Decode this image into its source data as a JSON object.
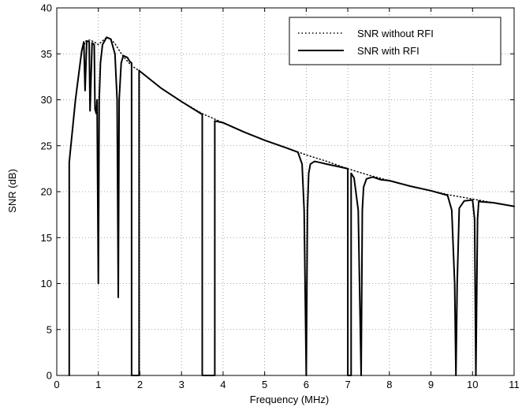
{
  "chart_data": {
    "type": "line",
    "title": "",
    "xlabel": "Frequency (MHz)",
    "ylabel": "SNR (dB)",
    "xlim": [
      0,
      11
    ],
    "ylim": [
      0,
      40
    ],
    "xticks": [
      "0",
      "1",
      "2",
      "3",
      "4",
      "5",
      "6",
      "7",
      "8",
      "9",
      "10",
      "11"
    ],
    "yticks": [
      "0",
      "5",
      "10",
      "15",
      "20",
      "25",
      "30",
      "35",
      "40"
    ],
    "grid": true,
    "legend_position": "top-right",
    "legend": [
      {
        "label": "SNR without RFI",
        "style": "dotted"
      },
      {
        "label": "SNR with RFI",
        "style": "solid"
      }
    ],
    "series": [
      {
        "name": "SNR without RFI",
        "style": "dotted",
        "color": "#000000",
        "x": [
          0.3,
          0.45,
          0.6,
          0.7,
          0.8,
          0.9,
          1.0,
          1.1,
          1.2,
          1.3,
          1.4,
          1.5,
          1.6,
          1.7,
          1.8,
          1.9,
          2.0,
          2.5,
          3.0,
          3.5,
          4.0,
          4.5,
          5.0,
          5.5,
          6.0,
          6.5,
          7.0,
          7.5,
          8.0,
          8.5,
          9.0,
          9.5,
          10.0,
          10.5,
          11.0
        ],
        "y": [
          23.2,
          30.0,
          35.3,
          36.4,
          36.5,
          36.3,
          36.0,
          36.4,
          36.8,
          36.6,
          36.1,
          35.4,
          34.7,
          34.2,
          33.7,
          33.4,
          33.1,
          31.3,
          29.8,
          28.5,
          27.5,
          26.5,
          25.6,
          24.8,
          24.0,
          23.3,
          22.5,
          21.8,
          21.2,
          20.6,
          20.1,
          19.6,
          19.2,
          18.8,
          18.4
        ]
      },
      {
        "name": "SNR with RFI",
        "style": "solid",
        "color": "#000000",
        "x": [
          0.3,
          0.3,
          0.45,
          0.6,
          0.65,
          0.68,
          0.72,
          0.78,
          0.8,
          0.85,
          0.9,
          0.92,
          0.95,
          0.97,
          1.0,
          1.02,
          1.05,
          1.1,
          1.2,
          1.3,
          1.4,
          1.45,
          1.48,
          1.5,
          1.55,
          1.6,
          1.7,
          1.75,
          1.8,
          1.8,
          1.98,
          1.98,
          2.0,
          2.5,
          3.0,
          3.5,
          3.5,
          3.8,
          3.8,
          4.0,
          4.5,
          5.0,
          5.5,
          5.8,
          5.9,
          5.95,
          6.0,
          6.03,
          6.06,
          6.1,
          6.2,
          6.3,
          6.5,
          6.8,
          7.0,
          7.0,
          7.08,
          7.08,
          7.15,
          7.25,
          7.32,
          7.35,
          7.38,
          7.45,
          7.6,
          7.8,
          8.0,
          8.5,
          9.0,
          9.4,
          9.5,
          9.57,
          9.6,
          9.63,
          9.68,
          9.8,
          10.0,
          10.05,
          10.08,
          10.12,
          10.15,
          10.2,
          10.5,
          11.0
        ],
        "y": [
          0,
          23.2,
          30.0,
          35.3,
          36.3,
          31.0,
          36.4,
          36.3,
          28.8,
          36.2,
          36.0,
          29.0,
          28.5,
          30.0,
          10.0,
          30.0,
          34.0,
          36.0,
          36.8,
          36.6,
          35.0,
          30.0,
          8.5,
          30.0,
          34.0,
          34.8,
          34.6,
          34.2,
          34.0,
          0,
          0,
          33.2,
          33.1,
          31.3,
          29.8,
          28.4,
          0,
          0,
          27.7,
          27.5,
          26.5,
          25.6,
          24.8,
          24.3,
          23.0,
          18.0,
          0,
          18.0,
          22.0,
          23.0,
          23.3,
          23.2,
          23.0,
          22.7,
          22.5,
          0,
          0,
          22.0,
          21.5,
          18.0,
          0,
          18.0,
          20.5,
          21.4,
          21.6,
          21.3,
          21.2,
          20.6,
          20.1,
          19.6,
          18.0,
          10.0,
          0,
          10.0,
          18.2,
          19.0,
          19.1,
          17.0,
          0,
          17.0,
          19.0,
          18.9,
          18.8,
          18.4
        ]
      }
    ]
  }
}
